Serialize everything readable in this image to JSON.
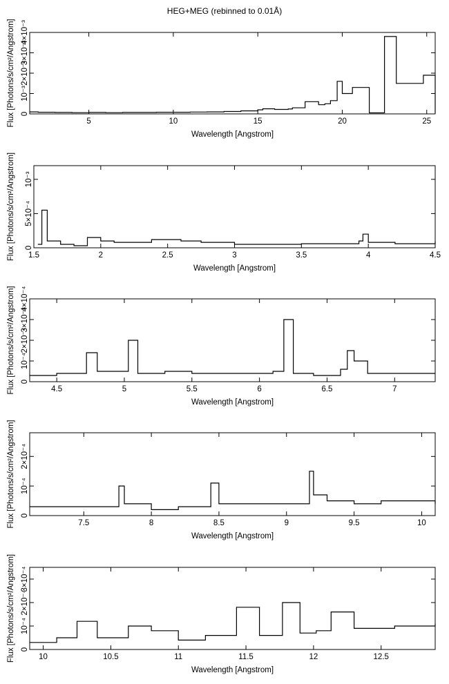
{
  "title": "HEG+MEG (rebinned to 0.01Å)",
  "chart_data": [
    {
      "type": "line",
      "xlabel": "Wavelength [Angstrom]",
      "ylabel": "Flux [Photons/s/cm²/Angstrom]",
      "xlim": [
        1.5,
        25.5
      ],
      "ylim": [
        0,
        0.004
      ],
      "xticks": [
        5,
        10,
        15,
        20,
        25
      ],
      "xtick_labels": [
        "5",
        "10",
        "15",
        "20",
        "25"
      ],
      "yticks": [
        0,
        0.001,
        0.002,
        0.003,
        0.004
      ],
      "ytick_labels": [
        "0",
        "10⁻³",
        "2×10⁻³",
        "3×10⁻³",
        "4×10⁻³"
      ],
      "series": [
        {
          "x": [
            1.5,
            2,
            3,
            4,
            5,
            6,
            7,
            8,
            9,
            10,
            11,
            12,
            13,
            14,
            15,
            15.3,
            16,
            16.8,
            17.05,
            17.8,
            18.6,
            18.97,
            19.3,
            19.7,
            20.0,
            20.6,
            21.6,
            22.1,
            22.5,
            23.2,
            24.5,
            24.8,
            25.5
          ],
          "y": [
            0.0001,
            8e-05,
            7e-05,
            6e-05,
            7e-05,
            6e-05,
            7e-05,
            7e-05,
            8e-05,
            8e-05,
            9e-05,
            0.0001,
            0.00012,
            0.00015,
            0.0002,
            0.00025,
            0.00022,
            0.00024,
            0.0003,
            0.0006,
            0.00045,
            0.0005,
            0.00065,
            0.0016,
            0.001,
            0.0013,
            5e-05,
            5e-05,
            0.0038,
            0.0015,
            0.0015,
            0.0019,
            5e-05
          ]
        }
      ]
    },
    {
      "type": "line",
      "xlabel": "Wavelength [Angstrom]",
      "ylabel": "Flux [Photons/s/cm²/Angstrom]",
      "xlim": [
        1.5,
        4.5
      ],
      "ylim": [
        0,
        0.0012
      ],
      "xticks": [
        1.5,
        2,
        2.5,
        3,
        3.5,
        4,
        4.5
      ],
      "xtick_labels": [
        "1.5",
        "2",
        "2.5",
        "3",
        "3.5",
        "4",
        "4.5"
      ],
      "yticks": [
        0,
        0.0005,
        0.001
      ],
      "ytick_labels": [
        "0",
        "5×10⁻⁴",
        "10⁻³"
      ],
      "series": [
        {
          "x": [
            1.53,
            1.56,
            1.6,
            1.7,
            1.8,
            1.9,
            2.0,
            2.1,
            2.38,
            2.6,
            2.75,
            3.0,
            3.5,
            3.93,
            3.96,
            4.0,
            4.2,
            4.5
          ],
          "y": [
            5e-05,
            0.00055,
            0.0001,
            5e-05,
            3e-05,
            0.00015,
            0.0001,
            8e-05,
            0.00012,
            0.0001,
            8e-05,
            5e-05,
            6e-05,
            0.0001,
            0.0002,
            8e-05,
            6e-05,
            0.0001
          ]
        }
      ]
    },
    {
      "type": "line",
      "xlabel": "Wavelength [Angstrom]",
      "ylabel": "Flux [Photons/s/cm²/Angstrom]",
      "xlim": [
        4.3,
        7.3
      ],
      "ylim": [
        0,
        0.0004
      ],
      "xticks": [
        4.5,
        5,
        5.5,
        6,
        6.5,
        7
      ],
      "xtick_labels": [
        "4.5",
        "5",
        "5.5",
        "6",
        "6.5",
        "7"
      ],
      "yticks": [
        0,
        0.0001,
        0.0002,
        0.0003,
        0.0004
      ],
      "ytick_labels": [
        "0",
        "10⁻⁴",
        "2×10⁻⁴",
        "3×10⁻⁴",
        "4×10⁻⁴"
      ],
      "series": [
        {
          "x": [
            4.3,
            4.5,
            4.72,
            4.8,
            4.97,
            5.03,
            5.1,
            5.3,
            5.5,
            5.7,
            5.9,
            6.1,
            6.18,
            6.25,
            6.4,
            6.6,
            6.65,
            6.7,
            6.8,
            7.0,
            7.3
          ],
          "y": [
            3e-05,
            4e-05,
            0.00014,
            5e-05,
            5e-05,
            0.0002,
            4e-05,
            5e-05,
            4e-05,
            4e-05,
            4e-05,
            5e-05,
            0.0003,
            4e-05,
            3e-05,
            6e-05,
            0.00015,
            0.0001,
            4e-05,
            4e-05,
            4e-05
          ]
        }
      ]
    },
    {
      "type": "line",
      "xlabel": "Wavelength [Angstrom]",
      "ylabel": "Flux [Photons/s/cm²/Angstrom]",
      "xlim": [
        7.1,
        10.1
      ],
      "ylim": [
        0,
        0.00028
      ],
      "xticks": [
        7.5,
        8,
        8.5,
        9,
        9.5,
        10
      ],
      "xtick_labels": [
        "7.5",
        "8",
        "8.5",
        "9",
        "9.5",
        "10"
      ],
      "yticks": [
        0,
        0.0001,
        0.0002
      ],
      "ytick_labels": [
        "0",
        "10⁻⁴",
        "2×10⁻⁴"
      ],
      "series": [
        {
          "x": [
            7.1,
            7.4,
            7.76,
            7.8,
            8.0,
            8.2,
            8.44,
            8.5,
            8.7,
            9.0,
            9.17,
            9.2,
            9.3,
            9.5,
            9.7,
            10.1
          ],
          "y": [
            3e-05,
            3e-05,
            0.0001,
            4e-05,
            2e-05,
            3e-05,
            0.00011,
            4e-05,
            4e-05,
            4e-05,
            0.00015,
            7e-05,
            5e-05,
            4e-05,
            5e-05,
            4e-05
          ]
        }
      ]
    },
    {
      "type": "line",
      "xlabel": "Wavelength [Angstrom]",
      "ylabel": "Flux [Photons/s/cm²/Angstrom]",
      "xlim": [
        9.9,
        12.9
      ],
      "ylim": [
        0,
        0.00035
      ],
      "xticks": [
        10,
        10.5,
        11,
        11.5,
        12,
        12.5
      ],
      "xtick_labels": [
        "10",
        "10.5",
        "11",
        "11.5",
        "12",
        "12.5"
      ],
      "yticks": [
        0,
        0.0001,
        0.0002,
        0.0003
      ],
      "ytick_labels": [
        "0",
        "10⁻⁴",
        "2×10⁻⁴",
        "3×10⁻⁴"
      ],
      "series": [
        {
          "x": [
            9.9,
            10.1,
            10.25,
            10.4,
            10.63,
            10.8,
            11.0,
            11.2,
            11.43,
            11.6,
            11.77,
            11.9,
            12.02,
            12.13,
            12.3,
            12.6,
            12.9
          ],
          "y": [
            3e-05,
            5e-05,
            0.00012,
            5e-05,
            0.0001,
            8e-05,
            4e-05,
            6e-05,
            0.00018,
            6e-05,
            0.0002,
            7e-05,
            8e-05,
            0.00016,
            9e-05,
            0.0001,
            0.00011
          ]
        }
      ]
    }
  ]
}
